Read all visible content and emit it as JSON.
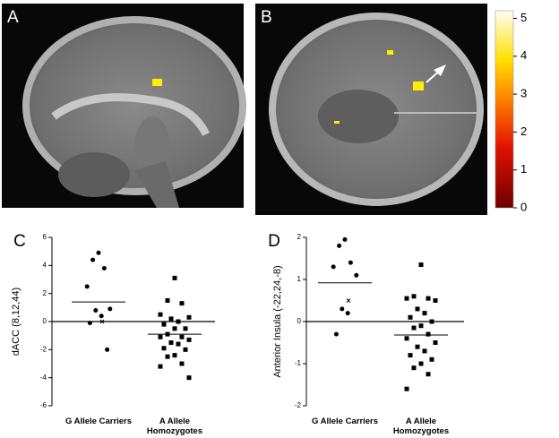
{
  "images": [
    {
      "label": "A"
    },
    {
      "label": "B"
    }
  ],
  "colorbar": {
    "lim": [
      0,
      5.2
    ],
    "ticks": [
      0,
      1,
      2,
      3,
      4,
      5
    ]
  },
  "chart_data": [
    {
      "type": "strip",
      "panel": "C",
      "ylabel": "dACC (8,12,44)",
      "categories": [
        "G Allele Carriers",
        "A Allele Homozygotes"
      ],
      "markers": [
        "circle",
        "square"
      ],
      "points": [
        [
          4.9,
          4.4,
          3.8,
          2.5,
          0.9,
          0.8,
          0.4,
          -0.1,
          -2.0
        ],
        [
          3.1,
          1.5,
          1.3,
          0.5,
          0.3,
          0.2,
          0.0,
          -0.2,
          -0.5,
          -0.5,
          -0.9,
          -1.1,
          -1.1,
          -1.3,
          -1.5,
          -1.6,
          -1.9,
          -2.0,
          -2.4,
          -2.5,
          -3.0,
          -3.2,
          -4.0
        ]
      ],
      "means": [
        1.4,
        -0.9
      ],
      "crosses": [
        0.0,
        null
      ],
      "ylim": [
        -6,
        6
      ],
      "yticks": [
        -6,
        -4,
        -2,
        0,
        2,
        4,
        6
      ]
    },
    {
      "type": "strip",
      "panel": "D",
      "ylabel": "Anterior Insula (-22,24,-8)",
      "categories": [
        "G Allele Carriers",
        "A Allele Homozygotes"
      ],
      "markers": [
        "circle",
        "square"
      ],
      "points": [
        [
          1.95,
          1.8,
          1.4,
          1.3,
          1.1,
          0.3,
          0.2,
          -0.3
        ],
        [
          1.35,
          0.6,
          0.55,
          0.55,
          0.5,
          0.3,
          0.2,
          0.1,
          0.0,
          -0.1,
          -0.15,
          -0.3,
          -0.4,
          -0.5,
          -0.6,
          -0.7,
          -0.8,
          -0.9,
          -1.0,
          -1.1,
          -1.25,
          -1.6
        ]
      ],
      "means": [
        0.92,
        -0.32
      ],
      "crosses": [
        0.5,
        null
      ],
      "ylim": [
        -2,
        2
      ],
      "yticks": [
        -2,
        -1,
        0,
        1,
        2
      ]
    }
  ]
}
